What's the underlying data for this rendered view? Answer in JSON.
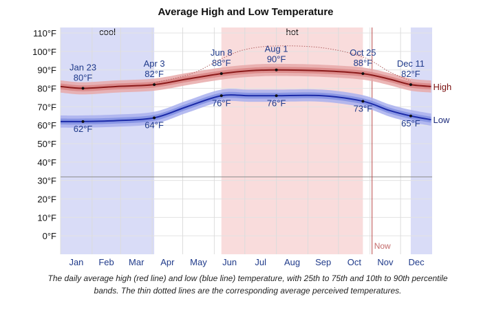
{
  "chart_data": {
    "type": "line",
    "title": "Average High and Low Temperature",
    "y_ticks": [
      "110°F",
      "100°F",
      "90°F",
      "80°F",
      "70°F",
      "60°F",
      "50°F",
      "40°F",
      "30°F",
      "20°F",
      "10°F",
      "0°F"
    ],
    "ylim": [
      -10,
      113
    ],
    "x_ticks": [
      "Jan",
      "Feb",
      "Mar",
      "Apr",
      "May",
      "Jun",
      "Jul",
      "Aug",
      "Sep",
      "Oct",
      "Nov",
      "Dec"
    ],
    "bands": [
      {
        "label": "cool",
        "range": [
          "Jan 1",
          "Apr 3"
        ],
        "color": "#d9dcf7"
      },
      {
        "label": "hot",
        "range": [
          "Jun 8",
          "Oct 25"
        ],
        "color": "#f9dcdc"
      },
      {
        "label": "",
        "range": [
          "Dec 11",
          "Dec 31"
        ],
        "color": "#d9dcf7"
      }
    ],
    "freezing_line": 32,
    "now_label": "Now",
    "series": [
      {
        "name": "High",
        "color": "#8b1a1a",
        "points": [
          {
            "date": "Jan 1",
            "value": 81
          },
          {
            "date": "Jan 23",
            "value": 80
          },
          {
            "date": "Feb 25",
            "value": 81
          },
          {
            "date": "Apr 3",
            "value": 82
          },
          {
            "date": "May 5",
            "value": 85
          },
          {
            "date": "Jun 8",
            "value": 88
          },
          {
            "date": "Jul 5",
            "value": 89.5
          },
          {
            "date": "Aug 1",
            "value": 90
          },
          {
            "date": "Sep 15",
            "value": 89.5
          },
          {
            "date": "Oct 25",
            "value": 88
          },
          {
            "date": "Nov 20",
            "value": 85
          },
          {
            "date": "Dec 11",
            "value": 82
          },
          {
            "date": "Dec 31",
            "value": 81
          }
        ],
        "annotations": [
          {
            "date": "Jan 23",
            "value": 80,
            "label_date": "Jan 23",
            "label_value": "80°F"
          },
          {
            "date": "Apr 3",
            "value": 82,
            "label_date": "Apr 3",
            "label_value": "82°F"
          },
          {
            "date": "Jun 8",
            "value": 88,
            "label_date": "Jun 8",
            "label_value": "88°F"
          },
          {
            "date": "Aug 1",
            "value": 90,
            "label_date": "Aug 1",
            "label_value": "90°F"
          },
          {
            "date": "Oct 25",
            "value": 88,
            "label_date": "Oct 25",
            "label_value": "88°F"
          },
          {
            "date": "Dec 11",
            "value": 82,
            "label_date": "Dec 11",
            "label_value": "82°F"
          }
        ]
      },
      {
        "name": "Low",
        "color": "#1b2aa8",
        "points": [
          {
            "date": "Jan 1",
            "value": 62
          },
          {
            "date": "Jan 23",
            "value": 62
          },
          {
            "date": "Feb 25",
            "value": 62.5
          },
          {
            "date": "Apr 3",
            "value": 64
          },
          {
            "date": "May 5",
            "value": 70
          },
          {
            "date": "Jun 8",
            "value": 76
          },
          {
            "date": "Jul 5",
            "value": 76
          },
          {
            "date": "Aug 1",
            "value": 76
          },
          {
            "date": "Sep 15",
            "value": 76
          },
          {
            "date": "Oct 25",
            "value": 73
          },
          {
            "date": "Nov 20",
            "value": 68
          },
          {
            "date": "Dec 11",
            "value": 65
          },
          {
            "date": "Dec 31",
            "value": 63
          }
        ],
        "annotations": [
          {
            "date": "Jan 23",
            "value": 62,
            "label_value": "62°F"
          },
          {
            "date": "Apr 3",
            "value": 64,
            "label_value": "64°F"
          },
          {
            "date": "Jun 8",
            "value": 76,
            "label_value": "76°F"
          },
          {
            "date": "Aug 1",
            "value": 76,
            "label_value": "76°F"
          },
          {
            "date": "Oct 25",
            "value": 73,
            "label_value": "73°F"
          },
          {
            "date": "Dec 11",
            "value": 65,
            "label_value": "65°F"
          }
        ]
      },
      {
        "name": "",
        "style": "dotted",
        "color": "#b06060",
        "points": [
          {
            "date": "Apr 3",
            "value": 83
          },
          {
            "date": "May 10",
            "value": 88
          },
          {
            "date": "Jun 8",
            "value": 96
          },
          {
            "date": "Jul 1",
            "value": 101
          },
          {
            "date": "Aug 1",
            "value": 103
          },
          {
            "date": "Sep 15",
            "value": 102
          },
          {
            "date": "Oct 25",
            "value": 97
          },
          {
            "date": "Nov 20",
            "value": 89
          },
          {
            "date": "Dec 11",
            "value": 84
          }
        ]
      }
    ]
  },
  "caption": "The daily average high (red line) and low (blue line) temperature, with 25th to 75th and 10th to 90th percentile bands. The thin dotted lines are the corresponding average perceived temperatures."
}
